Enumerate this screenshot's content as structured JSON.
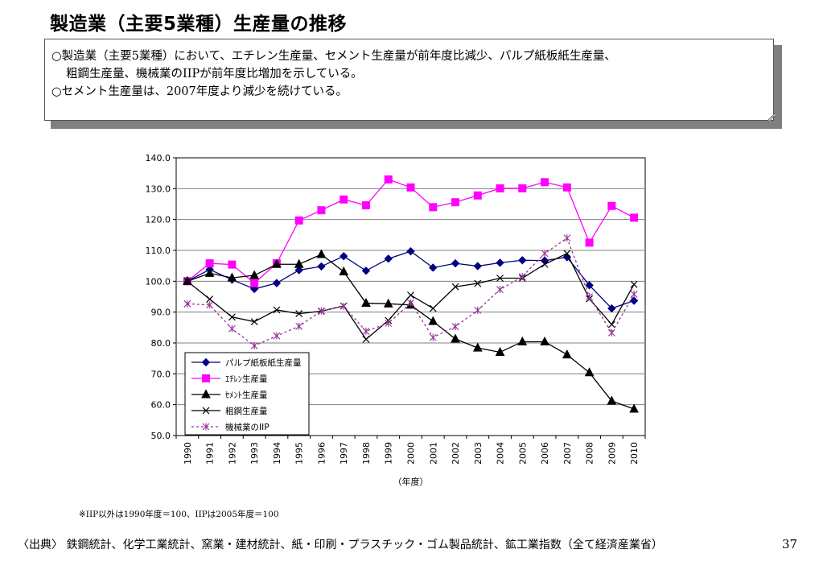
{
  "page": {
    "title": "製造業（主要5業種）生産量の推移",
    "notes": [
      "○製造業（主要5業種）において、エチレン生産量、セメント生産量が前年度比減少、パルプ紙板紙生産量、",
      "粗鋼生産量、機械業のIIPが前年度比増加を示している。",
      "○セメント生産量は、2007年度より減少を続けている。"
    ],
    "footnote": "※IIP以外は1990年度＝100、IIPは2005年度＝100",
    "source": "〈出典〉 鉄鋼統計、化学工業統計、窯業・建材統計、紙・印刷・プラスチック・ゴム製品統計、鉱工業指数（全て経済産業省）",
    "page_number": "37"
  },
  "chart_data": {
    "type": "line",
    "xlabel": "（年度）",
    "ylabel": "",
    "ylim": [
      50,
      140
    ],
    "ytick_step": 10,
    "ytick_labels": [
      "50.0",
      "60.0",
      "70.0",
      "80.0",
      "90.0",
      "100.0",
      "110.0",
      "120.0",
      "130.0",
      "140.0"
    ],
    "categories": [
      "1990",
      "1991",
      "1992",
      "1993",
      "1994",
      "1995",
      "1996",
      "1997",
      "1998",
      "1999",
      "2000",
      "2001",
      "2002",
      "2003",
      "2004",
      "2005",
      "2006",
      "2007",
      "2008",
      "2009",
      "2010"
    ],
    "grid": "horizontal",
    "legend_position": "bottom-left",
    "series": [
      {
        "name": "パルプ紙板紙生産量",
        "color": "#000080",
        "marker": "diamond",
        "dash": false,
        "values": [
          100.0,
          103.8,
          100.5,
          97.5,
          99.4,
          103.6,
          104.8,
          108.1,
          103.4,
          107.3,
          109.7,
          104.4,
          105.8,
          104.9,
          106.0,
          106.8,
          106.7,
          107.8,
          98.7,
          91.2,
          93.7
        ]
      },
      {
        "name": "ｴﾁﾚﾝ生産量",
        "color": "#ff00ff",
        "marker": "square",
        "dash": false,
        "values": [
          100.0,
          105.8,
          105.4,
          99.4,
          105.8,
          119.7,
          123.0,
          126.5,
          124.6,
          133.0,
          130.4,
          124.0,
          125.6,
          127.8,
          130.1,
          130.1,
          132.1,
          130.4,
          112.5,
          124.4,
          120.6
        ]
      },
      {
        "name": "ｾﾒﾝﾄ生産量",
        "color": "#000000",
        "marker": "triangle",
        "dash": false,
        "values": [
          100.0,
          102.6,
          101.1,
          101.9,
          105.5,
          105.5,
          108.7,
          103.1,
          92.9,
          92.7,
          92.3,
          87.0,
          81.3,
          78.4,
          77.0,
          80.4,
          80.4,
          76.2,
          70.4,
          61.2,
          58.6
        ]
      },
      {
        "name": "粗鋼生産量",
        "color": "#000000",
        "marker": "x",
        "dash": false,
        "values": [
          100.0,
          94.2,
          88.4,
          86.9,
          90.7,
          89.5,
          90.3,
          92.0,
          81.2,
          87.3,
          95.5,
          91.2,
          98.2,
          99.3,
          101.0,
          101.0,
          105.5,
          109.0,
          94.3,
          86.0,
          99.0
        ]
      },
      {
        "name": "機械業のIIP",
        "color": "#993399",
        "marker": "asterisk",
        "dash": true,
        "values": [
          92.7,
          92.3,
          84.6,
          79.1,
          82.3,
          85.4,
          90.4,
          91.9,
          83.8,
          86.4,
          93.0,
          81.8,
          85.3,
          90.6,
          97.3,
          101.5,
          109.0,
          114.0,
          95.0,
          83.3,
          95.8
        ]
      }
    ]
  }
}
